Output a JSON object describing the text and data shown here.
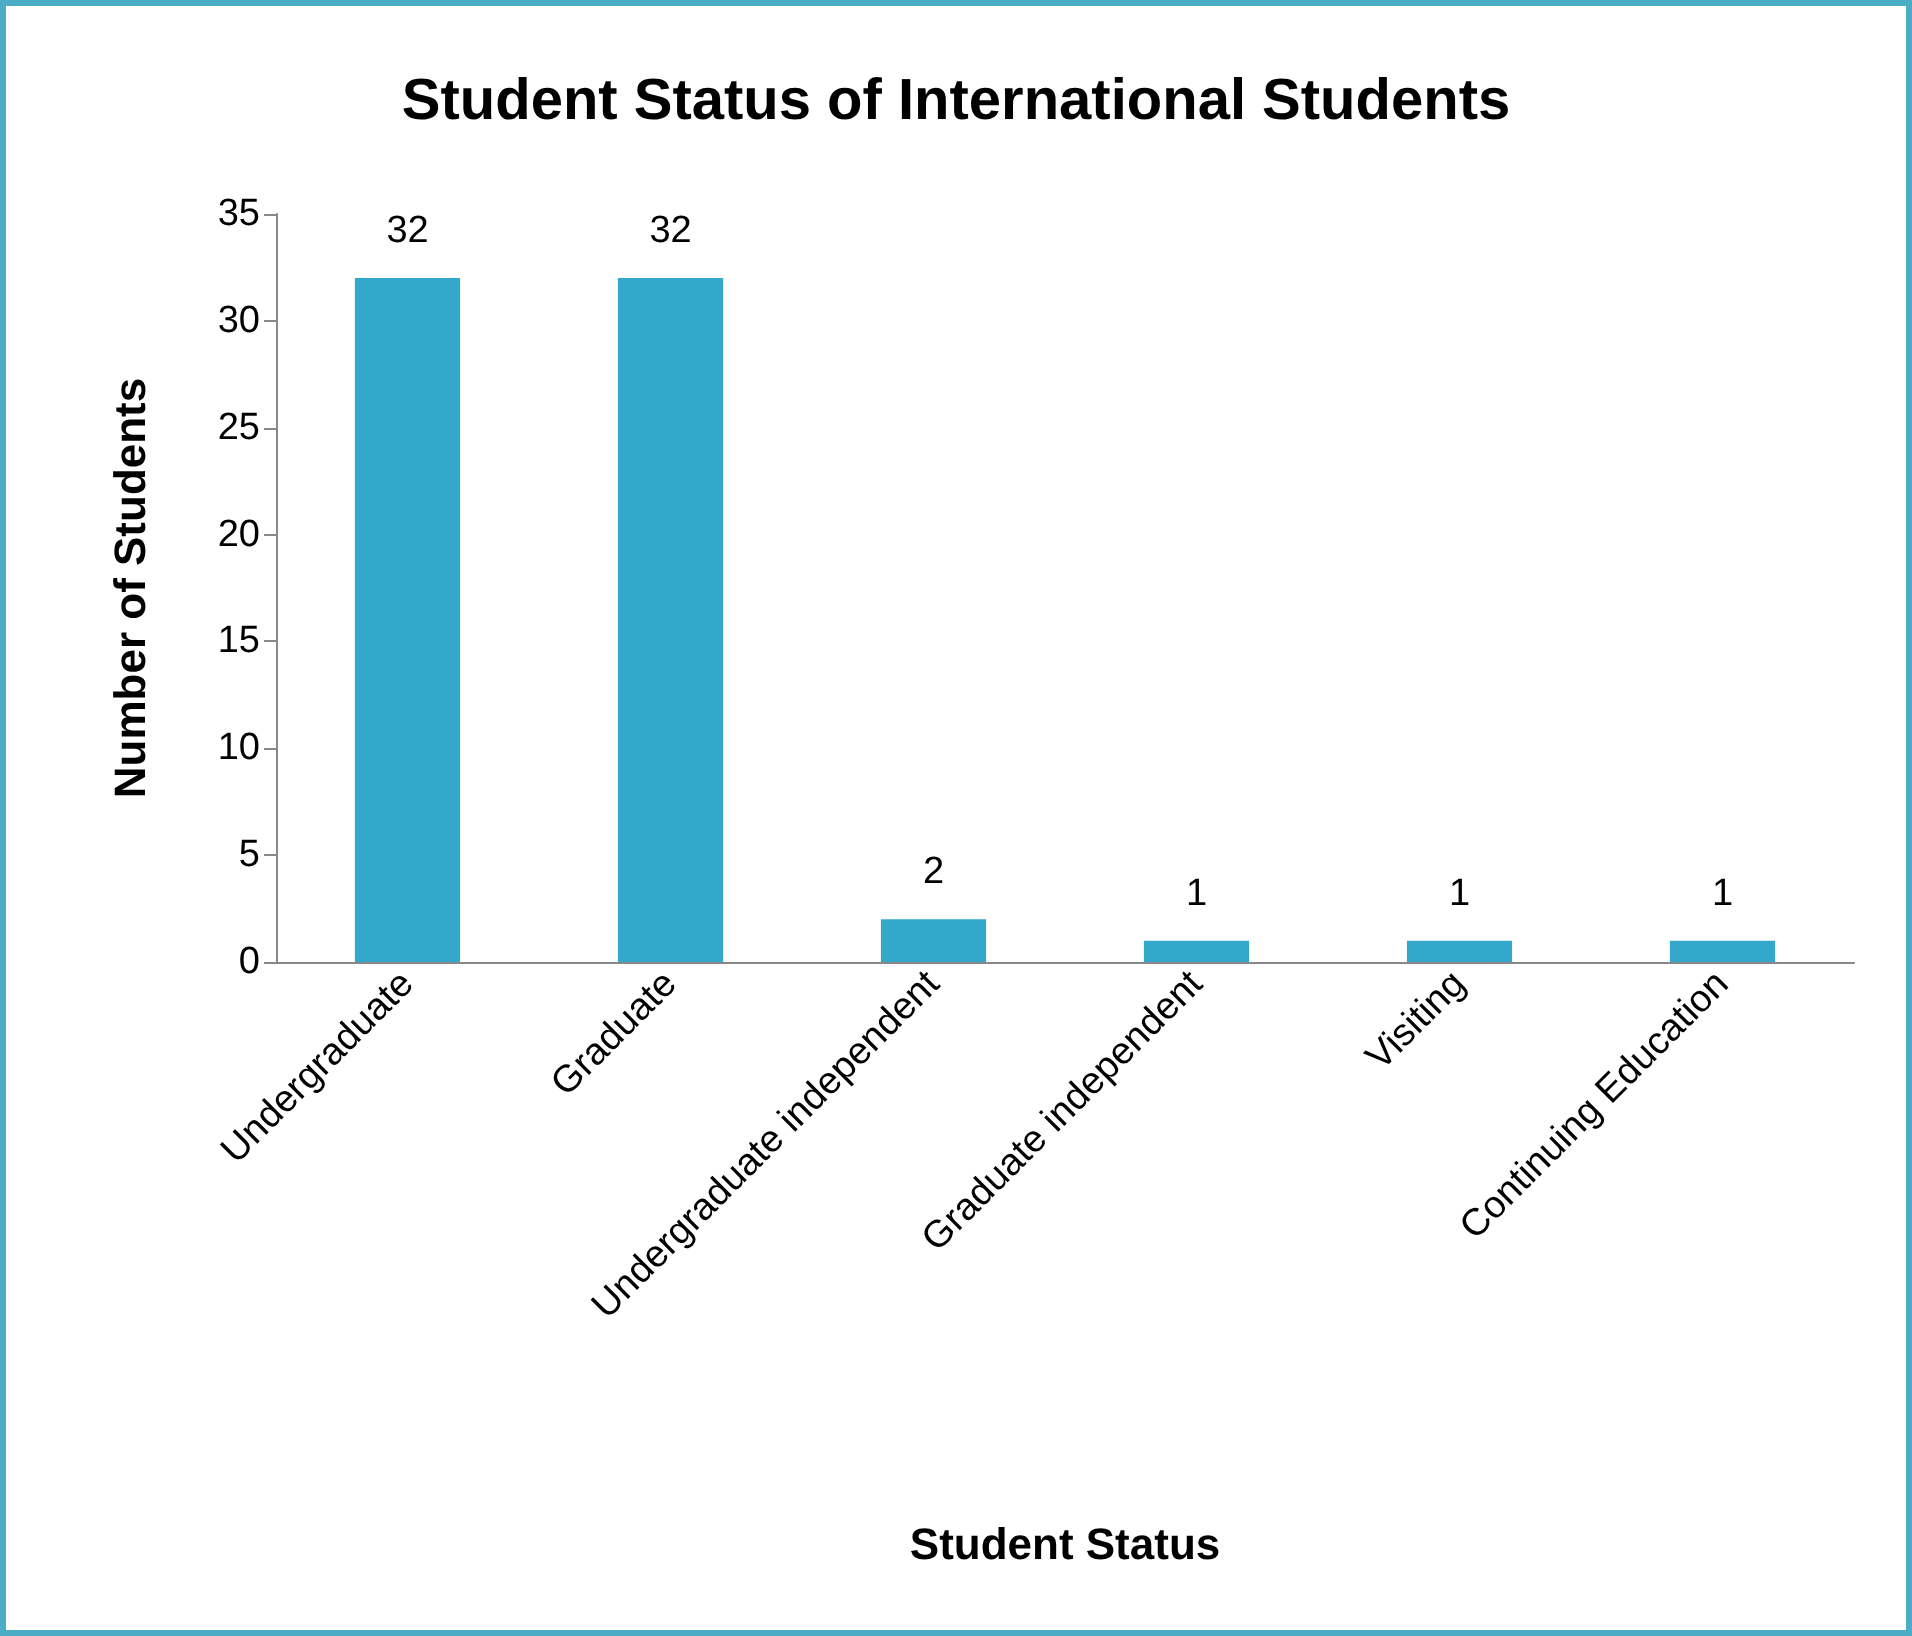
{
  "chart_data": {
    "type": "bar",
    "title": "Student Status of International Students",
    "xlabel": "Student Status",
    "ylabel": "Number of Students",
    "categories": [
      "Undergraduate",
      "Graduate",
      "Undergraduate independent",
      "Graduate independent",
      "Visiting",
      "Continuing Education"
    ],
    "values": [
      32,
      32,
      2,
      1,
      1,
      1
    ],
    "color": "#33a8cb",
    "ylim": [
      0,
      35
    ],
    "yticks": [
      0,
      5,
      10,
      15,
      20,
      25,
      30,
      35
    ],
    "grid": false,
    "data_labels": true
  }
}
